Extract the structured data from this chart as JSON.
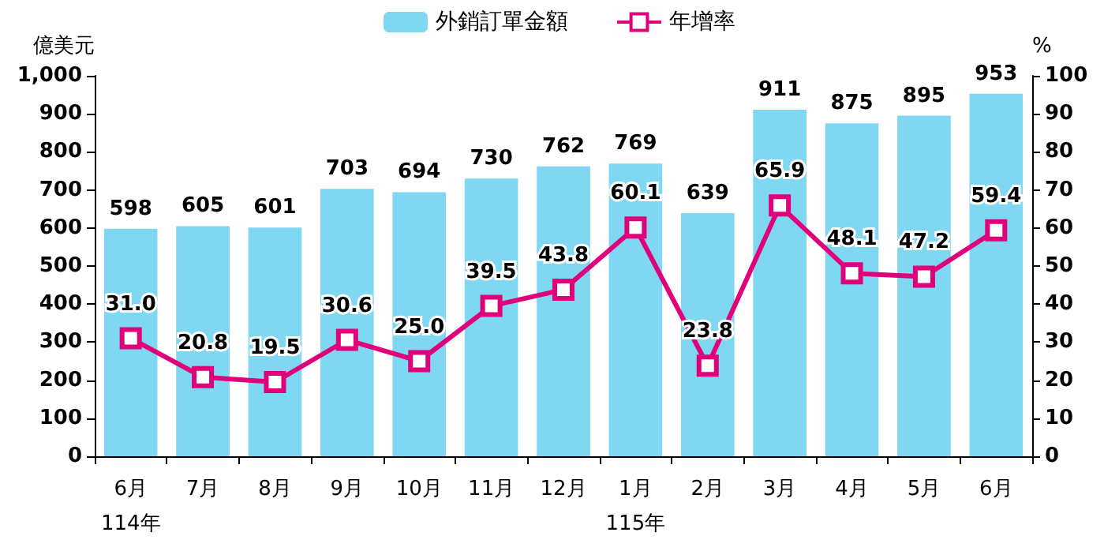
{
  "chart_data": {
    "type": "bar",
    "ylabel": "億美元",
    "y2label": "%",
    "categories": [
      "6月\n114年",
      "7月",
      "8月",
      "9月",
      "10月",
      "11月",
      "12月",
      "1月\n115年",
      "2月",
      "3月",
      "4月",
      "5月",
      "6月"
    ],
    "series": [
      {
        "name": "外銷訂單金額",
        "color": "#7fd7f2",
        "values": [
          598,
          605,
          601,
          703,
          694,
          730,
          762,
          769,
          639,
          911,
          875,
          895,
          953
        ],
        "value_labels": [
          "598",
          "605",
          "601",
          "703",
          "694",
          "730",
          "762",
          "769",
          "639",
          "911",
          "875",
          "895",
          "953"
        ]
      },
      {
        "name": "年增率",
        "type": "line",
        "axis": "y2",
        "color": "#e0007a",
        "values": [
          31.0,
          20.8,
          19.5,
          30.6,
          25.0,
          39.5,
          43.8,
          60.1,
          23.8,
          65.9,
          48.1,
          47.2,
          59.4
        ],
        "value_labels": [
          "31.0",
          "20.8",
          "19.5",
          "30.6",
          "25.0",
          "39.5",
          "43.8",
          "60.1",
          "23.8",
          "65.9",
          "48.1",
          "47.2",
          "59.4"
        ]
      }
    ],
    "ylim": [
      0,
      1000
    ],
    "yticks": [
      0,
      100,
      200,
      300,
      400,
      500,
      600,
      700,
      800,
      900,
      {
        "value": 1000,
        "label": "1,000"
      }
    ],
    "y2lim": [
      0,
      100
    ],
    "y2ticks": [
      0,
      10,
      20,
      30,
      40,
      50,
      60,
      70,
      80,
      90,
      100
    ],
    "grid": false,
    "legend": "top",
    "marker": "square",
    "line_style": "solid"
  }
}
